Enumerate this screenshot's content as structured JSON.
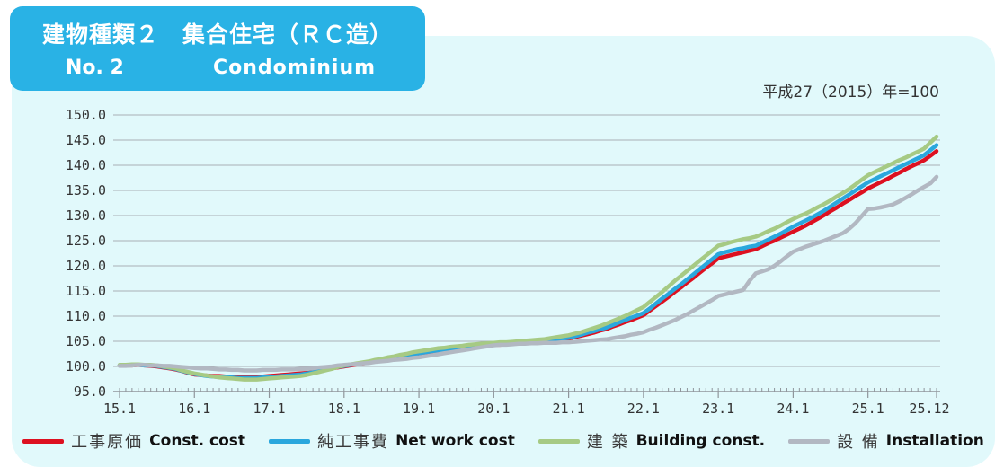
{
  "header": {
    "title_jp": "建物種類２　集合住宅（ＲＣ造）",
    "title_no": "No. 2",
    "title_en": "Condominium",
    "bg_color": "#29b2e5"
  },
  "note": "平成27（2015）年=100",
  "colors": {
    "panel_bg": "#e1f9fb",
    "grid": "#a9aeb4",
    "axis": "#8f959b",
    "tick_text": "#333333"
  },
  "chart_data": {
    "type": "line",
    "title": "",
    "xlabel": "",
    "ylabel": "",
    "ylim": [
      95,
      150
    ],
    "y_tick_step": 5,
    "y_tick_labels": [
      "95.0",
      "100.0",
      "105.0",
      "110.0",
      "115.0",
      "120.0",
      "125.0",
      "130.0",
      "135.0",
      "140.0",
      "145.0",
      "150.0"
    ],
    "x_tick_labels": [
      "15.1",
      "16.1",
      "17.1",
      "18.1",
      "19.1",
      "20.1",
      "21.1",
      "22.1",
      "23.1",
      "24.1",
      "25.1",
      "25.12"
    ],
    "x_tick_positions": [
      0,
      12,
      24,
      36,
      48,
      60,
      72,
      84,
      96,
      108,
      120,
      131
    ],
    "months_total": 132,
    "grid": true,
    "legend_position": "bottom",
    "series": [
      {
        "name_jp": "工事原価",
        "name_en": "Const. cost",
        "color": "#dd1020",
        "values": [
          100.2,
          100.2,
          100.2,
          100.3,
          100.2,
          100.1,
          100.0,
          99.8,
          99.6,
          99.4,
          99.1,
          98.7,
          98.4,
          98.3,
          98.2,
          98.1,
          98.1,
          98.0,
          98.0,
          97.9,
          97.9,
          97.9,
          98.0,
          98.0,
          98.1,
          98.2,
          98.3,
          98.4,
          98.5,
          98.6,
          98.7,
          98.9,
          99.1,
          99.4,
          99.6,
          99.8,
          100.0,
          100.2,
          100.4,
          100.6,
          100.8,
          101.0,
          101.2,
          101.4,
          101.6,
          101.8,
          102.0,
          102.2,
          102.4,
          102.6,
          102.8,
          103.0,
          103.1,
          103.3,
          103.4,
          103.6,
          103.7,
          103.9,
          104.0,
          104.1,
          104.3,
          104.3,
          104.4,
          104.5,
          104.5,
          104.6,
          104.7,
          104.8,
          104.9,
          105.0,
          105.2,
          105.3,
          105.5,
          105.8,
          106.1,
          106.4,
          106.7,
          107.1,
          107.4,
          107.9,
          108.3,
          108.8,
          109.2,
          109.7,
          110.2,
          111.1,
          112.0,
          112.9,
          113.8,
          114.8,
          115.7,
          116.7,
          117.6,
          118.6,
          119.6,
          120.5,
          121.5,
          121.8,
          122.1,
          122.4,
          122.7,
          123.0,
          123.3,
          123.9,
          124.5,
          125.0,
          125.6,
          126.2,
          126.8,
          127.4,
          128.0,
          128.7,
          129.4,
          130.1,
          130.9,
          131.6,
          132.4,
          133.1,
          133.9,
          134.6,
          135.4,
          136.0,
          136.6,
          137.2,
          137.9,
          138.5,
          139.2,
          139.8,
          140.4,
          141.0,
          141.9,
          142.8
        ]
      },
      {
        "name_jp": "純工事費",
        "name_en": "Net work cost",
        "color": "#2aa7dd",
        "values": [
          100.2,
          100.2,
          100.3,
          100.3,
          100.2,
          100.2,
          100.1,
          99.9,
          99.7,
          99.5,
          99.1,
          98.8,
          98.5,
          98.3,
          98.1,
          98.0,
          97.9,
          97.8,
          97.8,
          97.7,
          97.7,
          97.7,
          97.7,
          97.8,
          97.9,
          98.0,
          98.1,
          98.2,
          98.3,
          98.4,
          98.6,
          98.8,
          99.1,
          99.4,
          99.6,
          99.9,
          100.1,
          100.3,
          100.5,
          100.7,
          100.9,
          101.1,
          101.3,
          101.5,
          101.7,
          101.9,
          102.1,
          102.4,
          102.6,
          102.8,
          103.0,
          103.2,
          103.3,
          103.5,
          103.7,
          103.8,
          104.0,
          104.1,
          104.2,
          104.3,
          104.4,
          104.5,
          104.5,
          104.6,
          104.7,
          104.8,
          104.9,
          105.0,
          105.1,
          105.2,
          105.4,
          105.5,
          105.7,
          106.0,
          106.3,
          106.7,
          107.0,
          107.4,
          107.7,
          108.2,
          108.7,
          109.2,
          109.7,
          110.1,
          110.6,
          111.5,
          112.5,
          113.5,
          114.4,
          115.4,
          116.3,
          117.3,
          118.3,
          119.3,
          120.3,
          121.3,
          122.3,
          122.7,
          123.0,
          123.3,
          123.5,
          123.8,
          124.0,
          124.6,
          125.2,
          125.8,
          126.4,
          127.1,
          127.8,
          128.4,
          129.0,
          129.6,
          130.3,
          131.0,
          131.8,
          132.6,
          133.4,
          134.2,
          135.0,
          135.8,
          136.6,
          137.2,
          137.8,
          138.4,
          139.0,
          139.6,
          140.2,
          140.8,
          141.4,
          142.0,
          143.0,
          144.0
        ]
      },
      {
        "name_jp": "建 築",
        "name_en": "Building const.",
        "color": "#a6ca84",
        "values": [
          100.3,
          100.3,
          100.4,
          100.4,
          100.3,
          100.3,
          100.2,
          100.0,
          99.8,
          99.6,
          99.2,
          98.9,
          98.6,
          98.4,
          98.2,
          98.0,
          97.8,
          97.7,
          97.6,
          97.5,
          97.4,
          97.4,
          97.4,
          97.5,
          97.6,
          97.7,
          97.8,
          97.9,
          98.0,
          98.1,
          98.3,
          98.6,
          98.9,
          99.2,
          99.5,
          99.9,
          100.2,
          100.4,
          100.6,
          100.8,
          101.0,
          101.3,
          101.5,
          101.8,
          102.0,
          102.3,
          102.5,
          102.8,
          103.0,
          103.2,
          103.4,
          103.6,
          103.7,
          103.9,
          104.0,
          104.1,
          104.3,
          104.4,
          104.5,
          104.6,
          104.7,
          104.8,
          104.8,
          104.9,
          105.0,
          105.1,
          105.2,
          105.3,
          105.4,
          105.6,
          105.8,
          106.0,
          106.2,
          106.5,
          106.8,
          107.2,
          107.6,
          108.0,
          108.5,
          109.0,
          109.5,
          110.0,
          110.6,
          111.2,
          111.8,
          112.8,
          113.8,
          114.8,
          115.9,
          117.0,
          118.0,
          119.0,
          120.0,
          121.0,
          122.0,
          123.0,
          124.0,
          124.3,
          124.7,
          125.0,
          125.3,
          125.5,
          125.8,
          126.3,
          126.9,
          127.4,
          128.0,
          128.7,
          129.3,
          129.9,
          130.4,
          131.0,
          131.7,
          132.3,
          133.0,
          133.8,
          134.5,
          135.3,
          136.2,
          137.1,
          138.0,
          138.6,
          139.2,
          139.8,
          140.4,
          141.0,
          141.5,
          142.1,
          142.7,
          143.3,
          144.5,
          145.7
        ]
      },
      {
        "name_jp": "設 備",
        "name_en": "Installation",
        "color": "#b2b8c2",
        "values": [
          100.1,
          100.1,
          100.2,
          100.3,
          100.3,
          100.2,
          100.2,
          100.1,
          100.1,
          100.0,
          99.9,
          99.8,
          99.7,
          99.6,
          99.6,
          99.5,
          99.4,
          99.4,
          99.3,
          99.3,
          99.2,
          99.2,
          99.2,
          99.3,
          99.3,
          99.3,
          99.4,
          99.4,
          99.4,
          99.5,
          99.5,
          99.6,
          99.8,
          99.9,
          100.0,
          100.2,
          100.3,
          100.4,
          100.5,
          100.6,
          100.7,
          100.9,
          101.0,
          101.1,
          101.3,
          101.4,
          101.5,
          101.7,
          101.8,
          102.0,
          102.2,
          102.4,
          102.6,
          102.8,
          103.0,
          103.2,
          103.4,
          103.6,
          103.8,
          104.0,
          104.2,
          104.3,
          104.3,
          104.4,
          104.5,
          104.5,
          104.6,
          104.6,
          104.7,
          104.7,
          104.7,
          104.8,
          104.8,
          104.9,
          105.0,
          105.1,
          105.2,
          105.3,
          105.4,
          105.6,
          105.8,
          106.0,
          106.3,
          106.5,
          106.8,
          107.3,
          107.7,
          108.2,
          108.7,
          109.2,
          109.8,
          110.4,
          111.1,
          111.8,
          112.5,
          113.2,
          114.0,
          114.3,
          114.6,
          114.9,
          115.2,
          117.0,
          118.5,
          118.9,
          119.3,
          120.0,
          120.9,
          121.9,
          122.8,
          123.3,
          123.8,
          124.2,
          124.6,
          125.0,
          125.5,
          126.0,
          126.5,
          127.4,
          128.5,
          129.9,
          131.3,
          131.4,
          131.6,
          131.9,
          132.2,
          132.8,
          133.5,
          134.2,
          135.0,
          135.7,
          136.4,
          137.7
        ]
      }
    ]
  }
}
